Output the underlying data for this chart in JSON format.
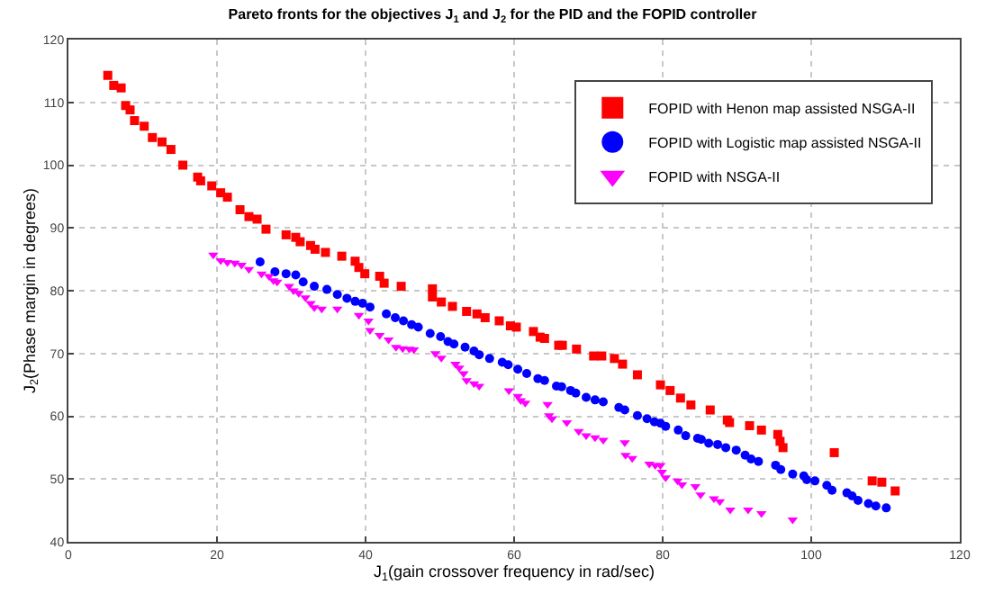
{
  "chart_data": {
    "type": "scatter",
    "title": "Pareto fronts for the objectives J$_{1}$ and J$_{2}$ for the PID and the FOPID controller",
    "xlabel": "J$_{1}$(gain crossover frequency in rad/sec)",
    "ylabel": "J$_{2}$(Phase margin in degrees)",
    "xlim": [
      0,
      120
    ],
    "ylim": [
      40,
      120
    ],
    "xticks": [
      0,
      20,
      40,
      60,
      80,
      100,
      120
    ],
    "yticks": [
      40,
      50,
      60,
      70,
      80,
      90,
      100,
      110,
      120
    ],
    "grid": true,
    "legend": "top right",
    "series": [
      {
        "name": "FOPID with Henon map assisted NSGA-II",
        "color": "#ff0000",
        "marker": "square",
        "x": [
          5.3,
          6.1,
          7.1,
          7.7,
          8.3,
          8.9,
          10.2,
          11.3,
          12.6,
          13.8,
          15.4,
          17.4,
          17.8,
          19.3,
          20.5,
          21.4,
          23.1,
          24.3,
          25.4,
          26.6,
          29.3,
          30.6,
          31.2,
          32.6,
          33.2,
          34.6,
          36.8,
          38.6,
          39.1,
          39.9,
          41.9,
          42.5,
          44.8,
          49.0,
          49.0,
          50.2,
          51.7,
          53.6,
          55.0,
          56.1,
          58.0,
          59.5,
          60.3,
          62.6,
          63.5,
          64.1,
          66.0,
          66.5,
          68.4,
          70.7,
          71.8,
          73.5,
          74.6,
          76.6,
          79.7,
          81.0,
          82.4,
          83.8,
          86.4,
          88.7,
          89.0,
          91.7,
          93.3,
          95.5,
          95.8,
          96.2,
          103.1,
          108.2,
          109.5,
          111.3
        ],
        "values": [
          114.3,
          112.7,
          112.3,
          109.5,
          108.8,
          107.1,
          106.2,
          104.4,
          103.7,
          102.5,
          100.0,
          98.1,
          97.5,
          96.7,
          95.6,
          94.9,
          92.9,
          91.8,
          91.4,
          89.8,
          88.9,
          88.5,
          87.8,
          87.2,
          86.6,
          86.1,
          85.5,
          84.7,
          83.7,
          82.7,
          82.3,
          81.2,
          80.7,
          80.3,
          79.0,
          78.2,
          77.5,
          76.7,
          76.3,
          75.7,
          75.2,
          74.4,
          74.2,
          73.5,
          72.6,
          72.4,
          71.3,
          71.3,
          70.7,
          69.6,
          69.6,
          69.2,
          68.3,
          66.6,
          65.0,
          64.1,
          62.9,
          61.8,
          61.0,
          59.4,
          59.0,
          58.5,
          57.8,
          57.1,
          56.0,
          55.0,
          54.2,
          49.7,
          49.5,
          48.1
        ]
      },
      {
        "name": "FOPID with Logistic map assisted NSGA-II",
        "color": "#0000ff",
        "marker": "circle",
        "x": [
          25.8,
          27.8,
          29.3,
          30.6,
          31.6,
          33.1,
          34.8,
          36.2,
          37.5,
          38.6,
          39.6,
          40.6,
          42.8,
          44.0,
          45.1,
          46.2,
          47.1,
          48.7,
          50.1,
          51.1,
          51.9,
          53.4,
          54.6,
          55.3,
          56.7,
          58.4,
          59.2,
          60.5,
          61.7,
          63.2,
          64.1,
          65.7,
          66.4,
          67.6,
          68.3,
          69.7,
          70.9,
          72.0,
          74.1,
          74.9,
          76.6,
          77.9,
          78.9,
          79.7,
          80.4,
          82.1,
          83.1,
          84.7,
          85.2,
          86.2,
          87.4,
          88.5,
          89.9,
          91.1,
          91.9,
          92.9,
          95.2,
          95.9,
          97.5,
          99.0,
          99.4,
          100.5,
          102.1,
          102.8,
          104.8,
          105.5,
          106.3,
          107.7,
          108.7,
          110.1
        ],
        "values": [
          84.6,
          83.0,
          82.7,
          82.5,
          81.4,
          80.7,
          80.2,
          79.4,
          78.8,
          78.3,
          78.0,
          77.4,
          76.3,
          75.7,
          75.2,
          74.6,
          74.2,
          73.2,
          72.7,
          71.9,
          71.5,
          71.0,
          70.4,
          69.8,
          69.2,
          68.6,
          68.2,
          67.5,
          66.8,
          66.0,
          65.7,
          64.8,
          64.7,
          64.1,
          63.7,
          63.0,
          62.6,
          62.3,
          61.4,
          61.0,
          60.1,
          59.6,
          59.1,
          58.9,
          58.4,
          57.8,
          56.9,
          56.5,
          56.3,
          55.7,
          55.5,
          55.0,
          54.6,
          53.8,
          53.2,
          52.8,
          52.2,
          51.5,
          50.8,
          50.5,
          49.9,
          49.7,
          49.0,
          48.2,
          47.8,
          47.3,
          46.6,
          46.1,
          45.7,
          45.4
        ]
      },
      {
        "name": "FOPID with NSGA-II",
        "color": "#ff00ff",
        "marker": "triangle",
        "x": [
          19.5,
          20.5,
          21.4,
          22.4,
          23.3,
          24.3,
          26.0,
          27.0,
          27.6,
          28.1,
          29.7,
          30.3,
          31.0,
          31.9,
          32.6,
          33.1,
          34.1,
          36.2,
          39.1,
          40.4,
          40.6,
          41.9,
          43.1,
          44.1,
          45.0,
          45.9,
          46.5,
          49.4,
          50.2,
          52.1,
          52.6,
          53.2,
          53.6,
          54.6,
          55.3,
          59.3,
          60.5,
          60.9,
          61.5,
          64.5,
          64.7,
          65.1,
          67.1,
          68.7,
          69.7,
          70.9,
          72.0,
          74.9,
          75.0,
          75.9,
          78.2,
          79.0,
          79.7,
          79.9,
          80.4,
          82.0,
          82.6,
          84.4,
          85.1,
          86.9,
          87.7,
          89.1,
          91.5,
          93.3,
          97.5
        ],
        "values": [
          85.7,
          84.8,
          84.5,
          84.4,
          84.1,
          83.4,
          82.7,
          82.3,
          81.6,
          81.4,
          80.7,
          80.0,
          79.6,
          78.9,
          78.0,
          77.3,
          77.1,
          77.1,
          76.1,
          75.2,
          73.7,
          72.9,
          72.2,
          71.0,
          70.8,
          70.7,
          70.6,
          70.0,
          69.3,
          68.3,
          67.7,
          66.8,
          65.7,
          65.2,
          64.8,
          64.1,
          63.2,
          62.5,
          62.1,
          61.9,
          60.1,
          59.6,
          59.0,
          57.6,
          56.9,
          56.6,
          56.2,
          55.8,
          53.8,
          53.3,
          52.4,
          52.2,
          52.2,
          51.1,
          50.2,
          49.7,
          49.1,
          48.8,
          47.5,
          46.9,
          46.4,
          45.1,
          45.1,
          44.5,
          43.5
        ]
      }
    ]
  }
}
